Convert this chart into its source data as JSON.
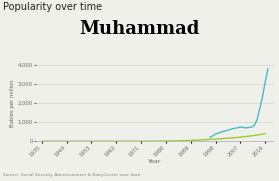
{
  "title_top": "Popularity over time",
  "title_name": "Muhammad",
  "xlabel": "Year",
  "ylabel": "Babies per million",
  "source_text": "Source: Social Security Administration & BabyCenter user data",
  "color_us": "#99cc33",
  "color_baby": "#44bbcc",
  "bg_color": "#f0f0eb",
  "years_us": [
    1935,
    1938,
    1941,
    1944,
    1947,
    1950,
    1953,
    1956,
    1959,
    1962,
    1965,
    1968,
    1971,
    1974,
    1977,
    1980,
    1983,
    1986,
    1989,
    1992,
    1995,
    1998,
    2001,
    2004,
    2007,
    2010,
    2013,
    2016
  ],
  "us_vals": [
    1,
    1,
    1,
    1,
    1,
    1,
    1,
    1,
    2,
    2,
    3,
    3,
    4,
    5,
    8,
    12,
    18,
    25,
    40,
    60,
    85,
    110,
    140,
    175,
    210,
    260,
    320,
    400
  ],
  "years_baby": [
    1996,
    1997,
    1998,
    1999,
    2000,
    2001,
    2002,
    2003,
    2004,
    2005,
    2006,
    2007,
    2008,
    2009,
    2010,
    2011,
    2012,
    2013,
    2014,
    2015,
    2016,
    2017
  ],
  "baby_vals": [
    200,
    280,
    380,
    420,
    480,
    520,
    560,
    600,
    650,
    680,
    700,
    750,
    720,
    700,
    720,
    740,
    820,
    1100,
    1700,
    2300,
    3100,
    3800
  ],
  "ylim": [
    0,
    4000
  ],
  "yticks": [
    0,
    1000,
    2000,
    3000,
    4000
  ],
  "xtick_years": [
    1935,
    1944,
    1953,
    1962,
    1971,
    1980,
    1989,
    1998,
    2007,
    2016
  ],
  "xlim": [
    1933,
    2019
  ]
}
